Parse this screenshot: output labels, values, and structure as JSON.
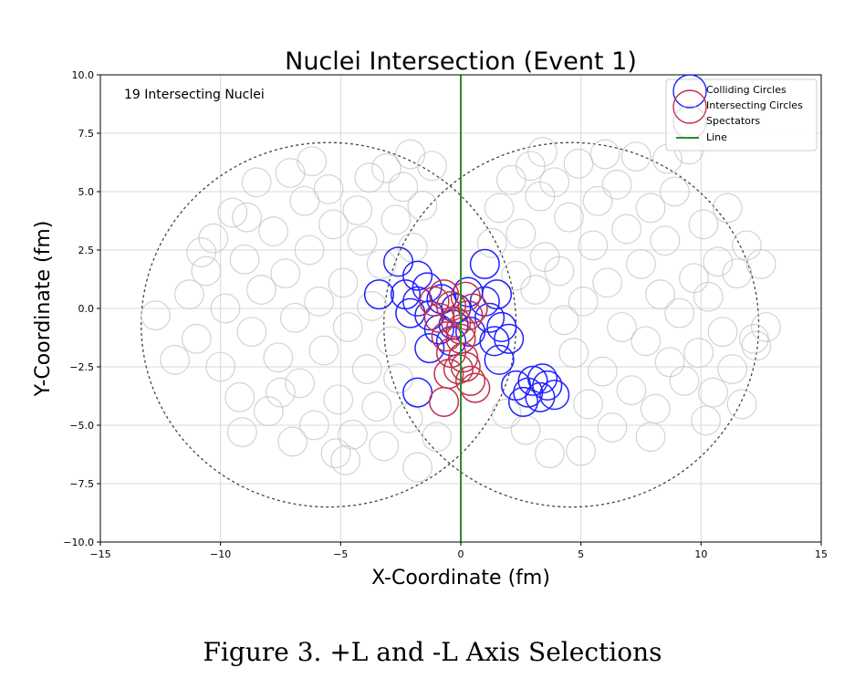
{
  "chart_data": {
    "type": "scatter",
    "title": "Nuclei Intersection (Event 1)",
    "xlabel": "X-Coordinate (fm)",
    "ylabel": "Y-Coordinate (fm)",
    "xlim": [
      -15,
      15
    ],
    "ylim": [
      -10,
      10
    ],
    "xticks": [
      -15,
      -10,
      -5,
      0,
      5,
      10,
      15
    ],
    "xtick_labels": [
      "−15",
      "−10",
      "−5",
      "0",
      "5",
      "10",
      "15"
    ],
    "yticks": [
      -10,
      -7.5,
      -5,
      -2.5,
      0,
      2.5,
      5,
      7.5,
      10
    ],
    "ytick_labels": [
      "−10.0",
      "−7.5",
      "−5.0",
      "−2.5",
      "0.0",
      "2.5",
      "5.0",
      "7.5",
      "10.0"
    ],
    "grid": true,
    "legend_position": "top-right",
    "annotation": "19 Intersecting Nuclei",
    "nucleon_radius": 0.6,
    "nuclei_outlines": [
      {
        "cx": -5.5,
        "cy": -0.7,
        "r": 7.8
      },
      {
        "cx": 4.6,
        "cy": -0.7,
        "r": 7.8
      }
    ],
    "line_x": 0,
    "colors": {
      "colliding": "#2020ff",
      "intersecting": "#c0304a",
      "spectators": "#c4c4c4",
      "line": "#2e8b2e",
      "outline": "#444444"
    },
    "series": [
      {
        "name": "Colliding Circles",
        "points": [
          [
            -2.6,
            2.0
          ],
          [
            -1.8,
            1.4
          ],
          [
            -1.4,
            0.9
          ],
          [
            -2.3,
            0.6
          ],
          [
            -3.4,
            0.6
          ],
          [
            -1.8,
            0.3
          ],
          [
            -2.1,
            -0.2
          ],
          [
            -1.3,
            -0.3
          ],
          [
            -0.8,
            0.4
          ],
          [
            -0.2,
            0.0
          ],
          [
            0.3,
            0.7
          ],
          [
            1.0,
            0.3
          ],
          [
            1.5,
            0.6
          ],
          [
            1.0,
            1.9
          ],
          [
            1.2,
            -0.4
          ],
          [
            1.7,
            -0.8
          ],
          [
            2.0,
            -1.3
          ],
          [
            1.4,
            -1.4
          ],
          [
            -1.3,
            -1.7
          ],
          [
            -0.9,
            -0.9
          ],
          [
            -0.3,
            -0.7
          ],
          [
            0.4,
            -1.0
          ],
          [
            2.3,
            -3.3
          ],
          [
            2.8,
            -3.6
          ],
          [
            3.0,
            -3.1
          ],
          [
            3.3,
            -3.8
          ],
          [
            3.6,
            -3.3
          ],
          [
            3.9,
            -3.7
          ],
          [
            2.6,
            -4.0
          ],
          [
            3.4,
            -3.0
          ],
          [
            -1.8,
            -3.6
          ],
          [
            1.6,
            -2.2
          ],
          [
            -0.4,
            -1.4
          ]
        ]
      },
      {
        "name": "Intersecting Circles",
        "points": [
          [
            -0.7,
            0.6
          ],
          [
            0.2,
            0.5
          ],
          [
            -0.4,
            0.1
          ],
          [
            -0.9,
            -0.4
          ],
          [
            -0.2,
            -0.6
          ],
          [
            0.3,
            -0.3
          ],
          [
            -0.6,
            -1.2
          ],
          [
            0.0,
            -1.3
          ],
          [
            -0.4,
            -1.9
          ],
          [
            0.1,
            -2.1
          ],
          [
            0.2,
            -2.5
          ],
          [
            -0.5,
            -2.8
          ],
          [
            0.4,
            -3.1
          ],
          [
            -0.7,
            -4.0
          ],
          [
            0.6,
            -3.4
          ],
          [
            -0.1,
            -2.6
          ],
          [
            0.5,
            0.0
          ],
          [
            -1.1,
            0.3
          ],
          [
            0.0,
            -0.9
          ]
        ]
      },
      {
        "name": "Spectators",
        "points": [
          [
            -12.7,
            -0.3
          ],
          [
            -11.3,
            0.6
          ],
          [
            -11.0,
            -1.3
          ],
          [
            -10.6,
            1.6
          ],
          [
            -10.3,
            3.0
          ],
          [
            -10.0,
            -2.5
          ],
          [
            -9.8,
            0.0
          ],
          [
            -9.5,
            4.1
          ],
          [
            -9.2,
            -3.8
          ],
          [
            -9.0,
            2.1
          ],
          [
            -8.7,
            -1.0
          ],
          [
            -8.5,
            5.4
          ],
          [
            -8.3,
            0.8
          ],
          [
            -8.0,
            -4.4
          ],
          [
            -7.8,
            3.3
          ],
          [
            -7.6,
            -2.1
          ],
          [
            -7.3,
            1.5
          ],
          [
            -7.1,
            5.8
          ],
          [
            -6.9,
            -0.4
          ],
          [
            -6.7,
            -3.2
          ],
          [
            -6.5,
            4.6
          ],
          [
            -6.3,
            2.5
          ],
          [
            -6.1,
            -5.0
          ],
          [
            -5.9,
            0.3
          ],
          [
            -5.7,
            -1.8
          ],
          [
            -5.5,
            5.1
          ],
          [
            -5.3,
            3.6
          ],
          [
            -5.1,
            -3.9
          ],
          [
            -4.9,
            1.1
          ],
          [
            -4.7,
            -0.8
          ],
          [
            -4.5,
            -5.4
          ],
          [
            -4.3,
            4.2
          ],
          [
            -4.1,
            2.9
          ],
          [
            -3.9,
            -2.6
          ],
          [
            -3.7,
            0.1
          ],
          [
            -3.5,
            -4.2
          ],
          [
            -3.3,
            1.9
          ],
          [
            -3.1,
            6.0
          ],
          [
            -2.9,
            -1.4
          ],
          [
            -2.7,
            3.8
          ],
          [
            -2.6,
            -3.0
          ],
          [
            -2.4,
            5.2
          ],
          [
            -2.2,
            -4.7
          ],
          [
            -2.0,
            2.6
          ],
          [
            -1.8,
            -6.8
          ],
          [
            -1.6,
            4.4
          ],
          [
            -1.2,
            6.1
          ],
          [
            -1.0,
            -5.5
          ],
          [
            -7.0,
            -5.7
          ],
          [
            -5.2,
            -6.2
          ],
          [
            -10.8,
            2.4
          ],
          [
            -9.1,
            -5.3
          ],
          [
            -3.8,
            5.6
          ],
          [
            -11.9,
            -2.2
          ],
          [
            -6.2,
            6.3
          ],
          [
            -8.9,
            3.9
          ],
          [
            -4.8,
            -6.5
          ],
          [
            -3.2,
            -5.9
          ],
          [
            -7.5,
            -3.6
          ],
          [
            -2.1,
            6.6
          ],
          [
            1.3,
            2.8
          ],
          [
            1.6,
            4.3
          ],
          [
            1.9,
            -4.5
          ],
          [
            2.1,
            5.5
          ],
          [
            2.3,
            1.4
          ],
          [
            2.5,
            3.2
          ],
          [
            2.7,
            -5.2
          ],
          [
            2.9,
            6.1
          ],
          [
            3.1,
            0.8
          ],
          [
            3.3,
            4.8
          ],
          [
            3.5,
            2.2
          ],
          [
            3.7,
            -6.2
          ],
          [
            3.9,
            5.4
          ],
          [
            4.1,
            1.6
          ],
          [
            4.3,
            -0.5
          ],
          [
            4.5,
            3.9
          ],
          [
            4.7,
            -1.9
          ],
          [
            4.9,
            6.2
          ],
          [
            5.1,
            0.3
          ],
          [
            5.3,
            -4.1
          ],
          [
            5.5,
            2.7
          ],
          [
            5.7,
            4.6
          ],
          [
            5.9,
            -2.7
          ],
          [
            6.1,
            1.1
          ],
          [
            6.3,
            -5.1
          ],
          [
            6.5,
            5.3
          ],
          [
            6.7,
            -0.8
          ],
          [
            6.9,
            3.4
          ],
          [
            7.1,
            -3.5
          ],
          [
            7.3,
            6.5
          ],
          [
            7.5,
            1.9
          ],
          [
            7.7,
            -1.4
          ],
          [
            7.9,
            4.3
          ],
          [
            8.1,
            -4.3
          ],
          [
            8.3,
            0.6
          ],
          [
            8.5,
            2.9
          ],
          [
            8.7,
            -2.3
          ],
          [
            8.9,
            5.0
          ],
          [
            9.1,
            -0.2
          ],
          [
            9.3,
            -3.1
          ],
          [
            9.5,
            6.8
          ],
          [
            9.7,
            1.3
          ],
          [
            9.9,
            -1.9
          ],
          [
            10.1,
            3.6
          ],
          [
            10.3,
            0.5
          ],
          [
            10.5,
            -3.6
          ],
          [
            10.7,
            2.0
          ],
          [
            10.9,
            -1.0
          ],
          [
            11.1,
            4.3
          ],
          [
            11.3,
            -2.6
          ],
          [
            11.5,
            1.5
          ],
          [
            11.7,
            -4.1
          ],
          [
            11.9,
            2.7
          ],
          [
            12.2,
            -1.3
          ],
          [
            12.7,
            -0.8
          ],
          [
            12.5,
            1.9
          ],
          [
            12.3,
            -1.6
          ],
          [
            5.0,
            -6.1
          ],
          [
            7.9,
            -5.5
          ],
          [
            10.2,
            -4.8
          ],
          [
            3.4,
            6.7
          ],
          [
            6.0,
            6.6
          ],
          [
            8.6,
            6.4
          ]
        ]
      },
      {
        "name": "Line"
      }
    ]
  },
  "caption": "Figure 3.  +L and -L Axis Selections"
}
